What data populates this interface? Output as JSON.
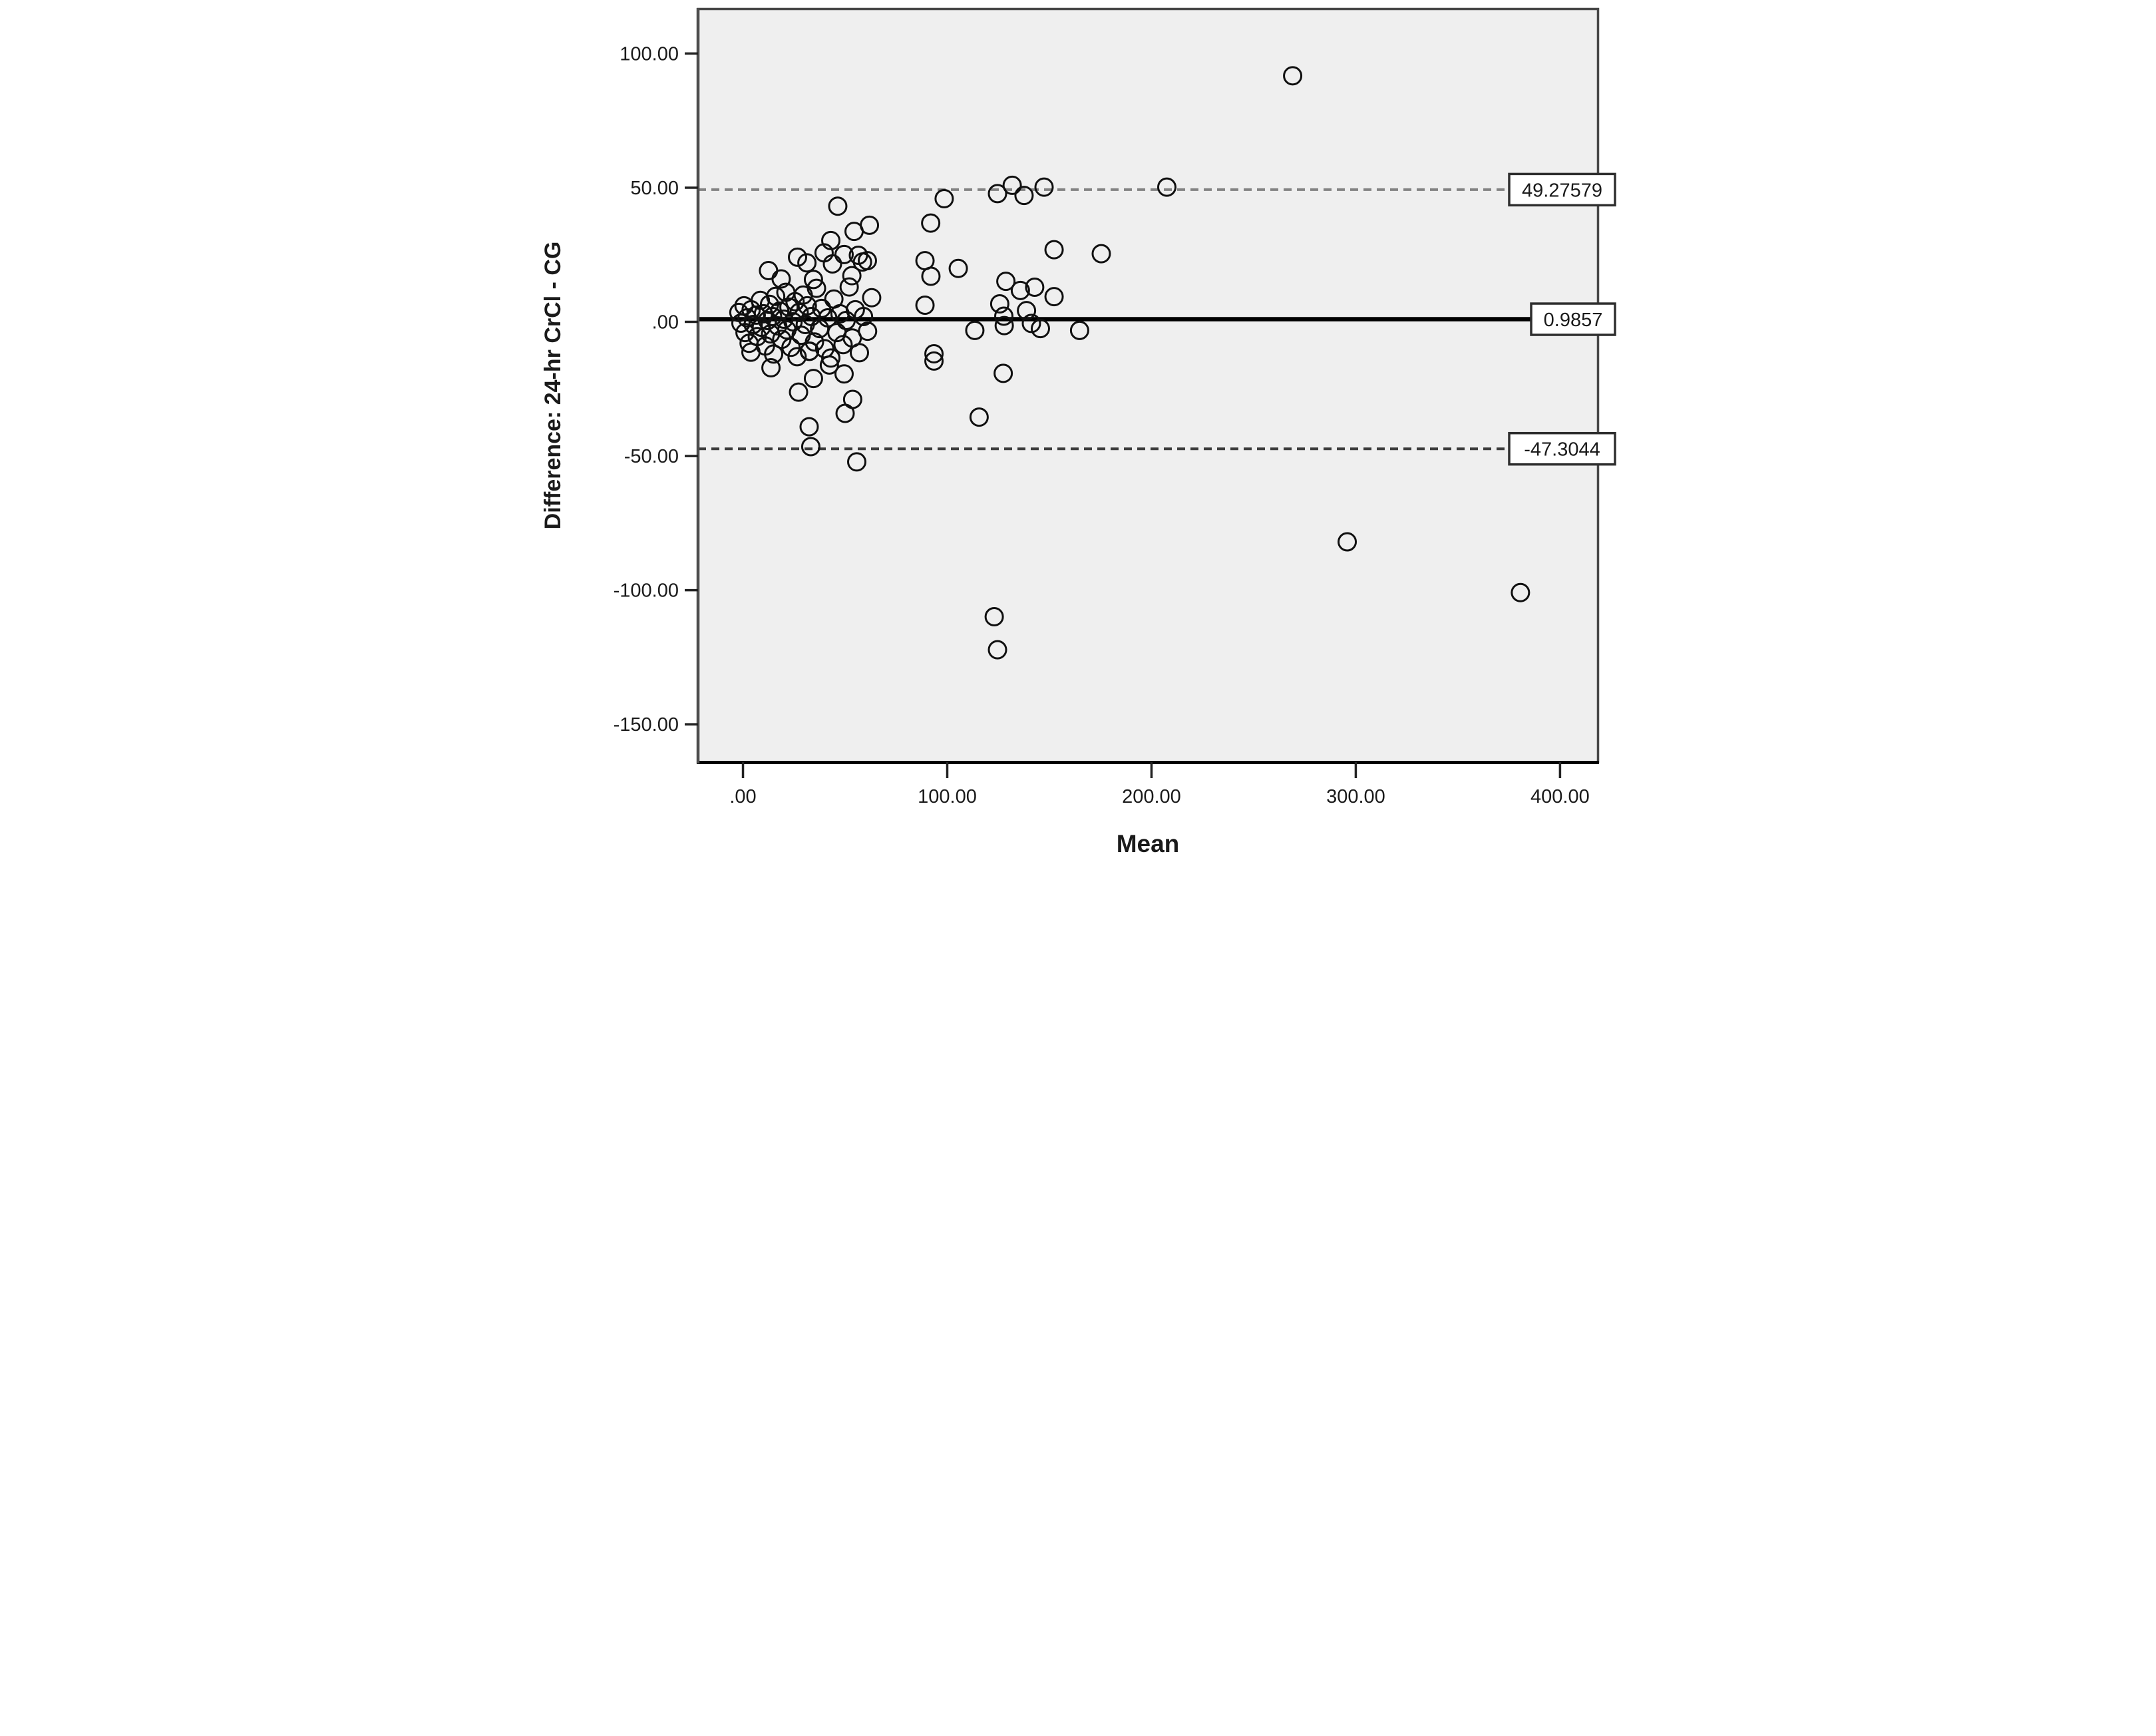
{
  "figure": {
    "kind": "SPSS Bland-Altman scatter plot",
    "background_color": "#ffffff",
    "plot_background_color": "#efefef",
    "frame_color": "#474747",
    "point_color": "#101010"
  },
  "chart_data": {
    "type": "scatter",
    "title": "",
    "xlabel": "Mean",
    "ylabel": "Difference: 24-hr CrCl - CG",
    "xlim": [
      -22,
      418.6
    ],
    "ylim": [
      -164.1,
      116.6
    ],
    "grid": false,
    "legend": "none",
    "x_ticks": [
      {
        "value": 0,
        "label": ".00"
      },
      {
        "value": 100,
        "label": "100.00"
      },
      {
        "value": 200,
        "label": "200.00"
      },
      {
        "value": 300,
        "label": "300.00"
      },
      {
        "value": 400,
        "label": "400.00"
      }
    ],
    "y_ticks": [
      {
        "value": 100,
        "label": "100.00"
      },
      {
        "value": 50,
        "label": "50.00"
      },
      {
        "value": 0,
        "label": ".00"
      },
      {
        "value": -50,
        "label": "-50.00"
      },
      {
        "value": -100,
        "label": "-100.00"
      },
      {
        "value": -150,
        "label": "-150.00"
      }
    ],
    "reference_lines": [
      {
        "name": "upper-limit-of-agreement",
        "value": 49.27579,
        "label": "49.27579",
        "style": "dashed",
        "color": "#828282",
        "width": 8
      },
      {
        "name": "mean-difference",
        "value": 0.9857,
        "label": "0.9857",
        "style": "solid",
        "color": "#000000",
        "width": 13
      },
      {
        "name": "lower-limit-of-agreement",
        "value": -47.3044,
        "label": "-47.3044",
        "style": "dashed",
        "color": "#3c3c3c",
        "width": 8
      }
    ],
    "points": [
      [
        46.4,
        43.1
      ],
      [
        54.4,
        33.7
      ],
      [
        61.9,
        36
      ],
      [
        43,
        30.3
      ],
      [
        39.7,
        25.7
      ],
      [
        49.5,
        25.1
      ],
      [
        26.7,
        24.1
      ],
      [
        31.3,
        22
      ],
      [
        43.8,
        21.6
      ],
      [
        56.5,
        24.8
      ],
      [
        58.5,
        22.3
      ],
      [
        60.9,
        22.8
      ],
      [
        12.5,
        19.1
      ],
      [
        18.7,
        16
      ],
      [
        53.3,
        17.2
      ],
      [
        34.5,
        15.8
      ],
      [
        3.9,
        -11.3
      ],
      [
        13.7,
        -17.1
      ],
      [
        32.6,
        -10.9
      ],
      [
        42.3,
        -16.1
      ],
      [
        34.5,
        -21.1
      ],
      [
        49.5,
        -19.4
      ],
      [
        27.2,
        -26.2
      ],
      [
        53.7,
        -28.9
      ],
      [
        50,
        -34.1
      ],
      [
        32.4,
        -39.1
      ],
      [
        33.2,
        -46.5
      ],
      [
        55.7,
        -52.2
      ],
      [
        98.5,
        45.9
      ],
      [
        91.9,
        36.8
      ],
      [
        124.6,
        47.8
      ],
      [
        131.8,
        50.9
      ],
      [
        89.1,
        22.8
      ],
      [
        92,
        17
      ],
      [
        105.4,
        19.9
      ],
      [
        152.3,
        26.9
      ],
      [
        128.7,
        15.1
      ],
      [
        135.8,
        11.7
      ],
      [
        125.7,
        6.7
      ],
      [
        127.7,
        2.1
      ],
      [
        89.1,
        6.2
      ],
      [
        127.9,
        -1.4
      ],
      [
        113.5,
        -3.2
      ],
      [
        145.6,
        -2.5
      ],
      [
        93.5,
        -11.9
      ],
      [
        93.5,
        -14.6
      ],
      [
        127.4,
        -19.2
      ],
      [
        115.6,
        -35.5
      ],
      [
        137.6,
        47.1
      ],
      [
        147.4,
        50.2
      ],
      [
        207.5,
        50.2
      ],
      [
        175.4,
        25.4
      ],
      [
        142.8,
        12.9
      ],
      [
        152.3,
        9.4
      ],
      [
        138.8,
        4.2
      ],
      [
        141.2,
        -0.6
      ],
      [
        164.8,
        -3.2
      ],
      [
        269.1,
        91.7
      ],
      [
        295.8,
        -82
      ],
      [
        123,
        -109.9
      ],
      [
        124.6,
        -122.2
      ],
      [
        380.6,
        -100.9
      ],
      [
        -2,
        3.5
      ],
      [
        -1,
        -0.5
      ],
      [
        0.5,
        6
      ],
      [
        1,
        -4
      ],
      [
        2,
        1.5
      ],
      [
        3,
        -8
      ],
      [
        4,
        4.5
      ],
      [
        5,
        -1
      ],
      [
        6.5,
        2.5
      ],
      [
        7,
        -5.5
      ],
      [
        8.5,
        8
      ],
      [
        9,
        -2
      ],
      [
        10,
        3
      ],
      [
        11,
        -9
      ],
      [
        12,
        0.5
      ],
      [
        13,
        6.5
      ],
      [
        13.5,
        -4.5
      ],
      [
        14.5,
        2
      ],
      [
        15,
        -12
      ],
      [
        16,
        9.5
      ],
      [
        17,
        -1.5
      ],
      [
        18,
        4
      ],
      [
        19,
        -6.5
      ],
      [
        20,
        1
      ],
      [
        21,
        11
      ],
      [
        21.5,
        -3
      ],
      [
        22.5,
        5.5
      ],
      [
        23.5,
        -9.5
      ],
      [
        24.5,
        0
      ],
      [
        25.5,
        7.5
      ],
      [
        26.5,
        -13
      ],
      [
        27.5,
        3.5
      ],
      [
        28.5,
        -5
      ],
      [
        29.5,
        10
      ],
      [
        30.5,
        -1
      ],
      [
        31.5,
        6
      ],
      [
        32.5,
        -11
      ],
      [
        33.5,
        2
      ],
      [
        35,
        -7.5
      ],
      [
        36,
        12.5
      ],
      [
        37.5,
        -2.5
      ],
      [
        38.5,
        5
      ],
      [
        40,
        -10
      ],
      [
        41.5,
        1.5
      ],
      [
        43,
        -13.5
      ],
      [
        44.5,
        8.5
      ],
      [
        46,
        -4
      ],
      [
        47.5,
        3
      ],
      [
        49,
        -8.5
      ],
      [
        50.5,
        0.5
      ],
      [
        52,
        13
      ],
      [
        53.5,
        -6
      ],
      [
        55,
        4.5
      ],
      [
        57,
        -11.5
      ],
      [
        59,
        2
      ],
      [
        61,
        -3.5
      ],
      [
        63,
        9
      ]
    ]
  }
}
